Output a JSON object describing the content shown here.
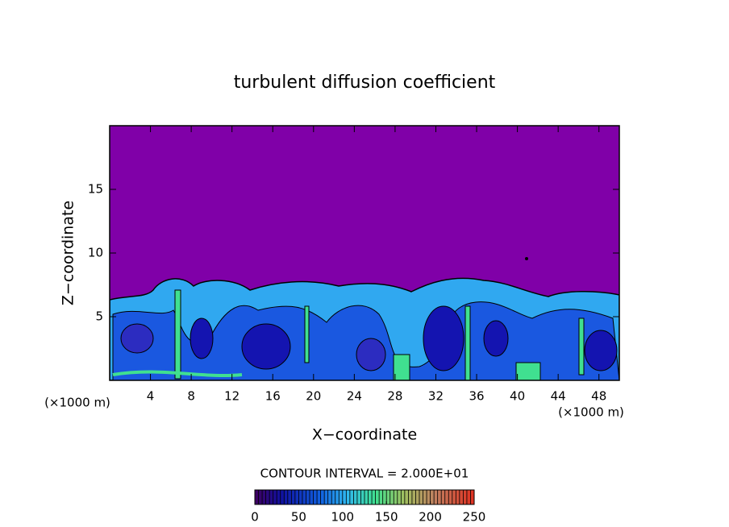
{
  "chart_data": {
    "type": "contour",
    "title": "turbulent diffusion coefficient",
    "xlabel": "X−coordinate",
    "ylabel": "Z−coordinate",
    "y_unit": "(×1000 m)",
    "x_unit": "(×1000 m)",
    "xlim": [
      0,
      50
    ],
    "xticks": [
      4,
      8,
      12,
      16,
      20,
      24,
      28,
      32,
      36,
      40,
      44,
      48
    ],
    "ylim": [
      0,
      20
    ],
    "yticks": [
      5,
      10,
      15
    ],
    "contour_interval": "CONTOUR INTERVAL = 2.000E+01",
    "colorbar": {
      "lim": [
        0,
        250
      ],
      "ticks": [
        0,
        50,
        100,
        150,
        200,
        250
      ]
    }
  }
}
